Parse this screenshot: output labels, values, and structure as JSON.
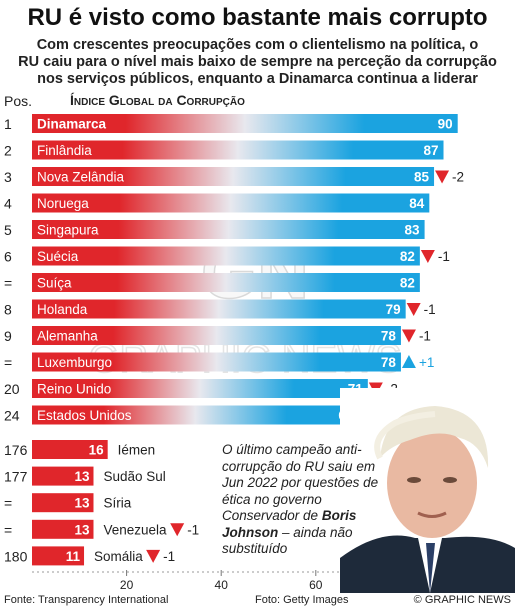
{
  "header": {
    "title": "RU é visto como bastante mais corrupto",
    "subtitle_lines": [
      "Com crescentes preocupações com o clientelismo na política, o",
      "RU caiu para o nível mais baixo de sempre na perceção da corrupção",
      "nos serviços públicos, enquanto a Dinamarca continua a liderar"
    ]
  },
  "pos_header": "Pos.",
  "colors": {
    "top_bar": "#1ba3e0",
    "bottom_bar": "#e0262b",
    "text": "#222222",
    "up": "#1ba3e0",
    "down": "#e0262b"
  },
  "chart_data": {
    "type": "bar",
    "title": "Índice Global da Corrupção",
    "xlim": [
      0,
      100
    ],
    "xticks": [
      "20",
      "40",
      "60",
      "80"
    ],
    "rows": [
      {
        "pos": "1",
        "country": "Dinamarca",
        "value": 90,
        "change": ""
      },
      {
        "pos": "2",
        "country": "Finlândia",
        "value": 87,
        "change": ""
      },
      {
        "pos": "3",
        "country": "Nova Zelândia",
        "value": 85,
        "change": "-2"
      },
      {
        "pos": "4",
        "country": "Noruega",
        "value": 84,
        "change": ""
      },
      {
        "pos": "5",
        "country": "Singapura",
        "value": 83,
        "change": ""
      },
      {
        "pos": "6",
        "country": "Suécia",
        "value": 82,
        "change": "-1"
      },
      {
        "pos": "=",
        "country": "Suíça",
        "value": 82,
        "change": ""
      },
      {
        "pos": "8",
        "country": "Holanda",
        "value": 79,
        "change": "-1"
      },
      {
        "pos": "9",
        "country": "Alemanha",
        "value": 78,
        "change": "-1"
      },
      {
        "pos": "=",
        "country": "Luxemburgo",
        "value": 78,
        "change": "+1"
      },
      {
        "pos": "20",
        "country": "Reino Unido",
        "value": 71,
        "change": "-2"
      },
      {
        "pos": "24",
        "country": "Estados Unidos",
        "value": 69,
        "change": ""
      },
      {
        "pos": "176",
        "country": "Iémen",
        "value": 16,
        "change": ""
      },
      {
        "pos": "177",
        "country": "Sudão Sul",
        "value": 13,
        "change": ""
      },
      {
        "pos": "=",
        "country": "Síria",
        "value": 13,
        "change": ""
      },
      {
        "pos": "=",
        "country": "Venezuela",
        "value": 13,
        "change": "-1"
      },
      {
        "pos": "180",
        "country": "Somália",
        "value": 11,
        "change": "-1"
      }
    ]
  },
  "caption": {
    "text1": "O último campeão anti-corrupção do RU saiu em Jun 2022 por questões de ética no governo Conservador de",
    "name": "Boris Johnson",
    "text2": " – ainda não substituído"
  },
  "watermark": {
    "logo": "GN",
    "text": "GRAPHIC NEWS"
  },
  "footer": {
    "source": "Fonte: Transparency International",
    "photo": "Foto: Getty Images",
    "copyright": "© GRAPHIC NEWS"
  }
}
